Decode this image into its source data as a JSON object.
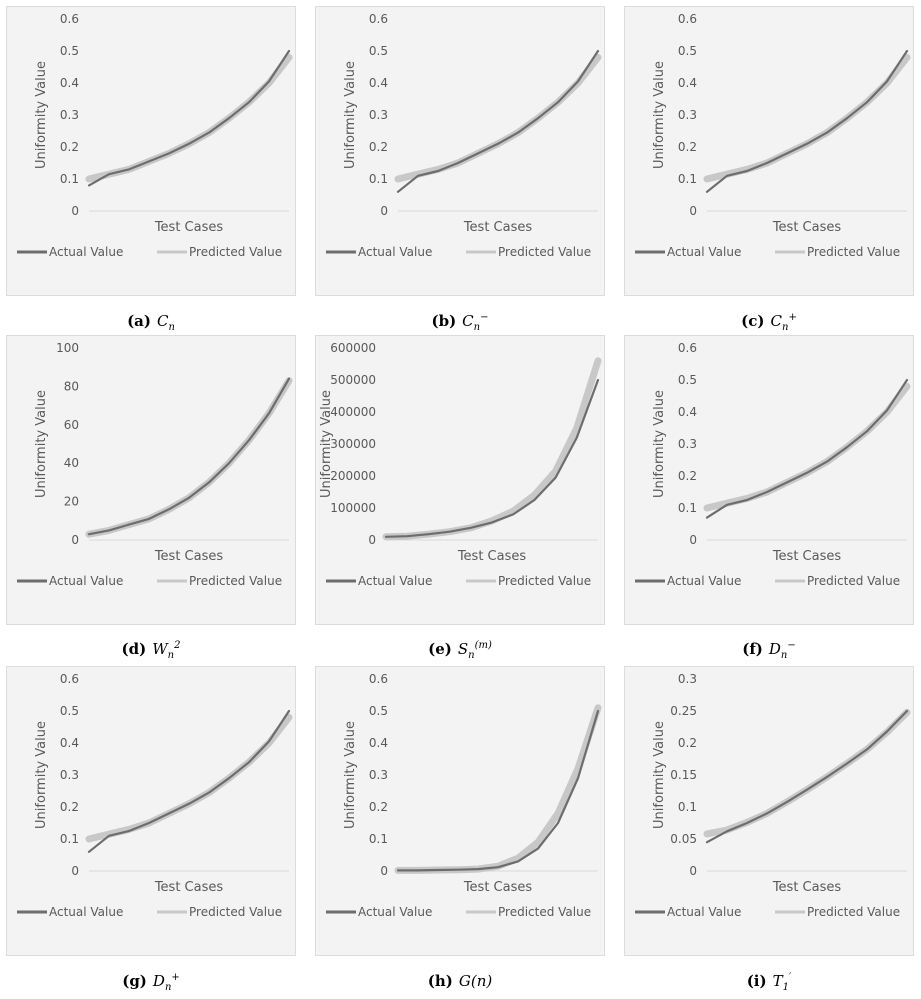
{
  "common": {
    "ylabel": "Uniformity Value",
    "xlabel": "Test Cases",
    "legend": [
      "Actual Value",
      "Predicted Value"
    ],
    "colors": {
      "actual": "#6d6d6d",
      "predicted": "#c8c8c8",
      "tick": "#595959",
      "axis": "#d9d9d9"
    }
  },
  "chart_data": [
    {
      "id": "a",
      "type": "line",
      "caption_tag": "(a)",
      "caption_math": "C_n",
      "yticks": [
        "0.6",
        "0.5",
        "0.4",
        "0.3",
        "0.2",
        "0.1",
        "0"
      ],
      "ylim": [
        0,
        0.6
      ],
      "xlabel": "Test Cases",
      "ylabel": "Uniformity Value",
      "series": [
        {
          "name": "Actual Value",
          "x": [
            0,
            0.1,
            0.2,
            0.3,
            0.4,
            0.5,
            0.6,
            0.7,
            0.8,
            0.9,
            1.0
          ],
          "y": [
            0.08,
            0.115,
            0.13,
            0.155,
            0.18,
            0.21,
            0.245,
            0.29,
            0.34,
            0.405,
            0.5
          ]
        },
        {
          "name": "Predicted Value",
          "x": [
            0,
            0.1,
            0.2,
            0.3,
            0.4,
            0.5,
            0.6,
            0.7,
            0.8,
            0.9,
            1.0
          ],
          "y": [
            0.1,
            0.115,
            0.13,
            0.155,
            0.18,
            0.21,
            0.245,
            0.29,
            0.34,
            0.4,
            0.48
          ]
        }
      ]
    },
    {
      "id": "b",
      "type": "line",
      "caption_tag": "(b)",
      "caption_math": "C_n^-",
      "yticks": [
        "0.6",
        "0.5",
        "0.4",
        "0.3",
        "0.2",
        "0.1",
        "0"
      ],
      "ylim": [
        0,
        0.6
      ],
      "xlabel": "Test Cases",
      "ylabel": "Uniformity Value",
      "series": [
        {
          "name": "Actual Value",
          "x": [
            0,
            0.1,
            0.2,
            0.3,
            0.4,
            0.5,
            0.6,
            0.7,
            0.8,
            0.9,
            1.0
          ],
          "y": [
            0.06,
            0.11,
            0.125,
            0.15,
            0.18,
            0.21,
            0.245,
            0.29,
            0.34,
            0.405,
            0.5
          ]
        },
        {
          "name": "Predicted Value",
          "x": [
            0,
            0.1,
            0.2,
            0.3,
            0.4,
            0.5,
            0.6,
            0.7,
            0.8,
            0.9,
            1.0
          ],
          "y": [
            0.1,
            0.115,
            0.13,
            0.15,
            0.18,
            0.21,
            0.245,
            0.29,
            0.34,
            0.4,
            0.48
          ]
        }
      ]
    },
    {
      "id": "c",
      "type": "line",
      "caption_tag": "(c)",
      "caption_math": "C_n^+",
      "yticks": [
        "0.6",
        "0.5",
        "0.4",
        "0.3",
        "0.2",
        "0.1",
        "0"
      ],
      "ylim": [
        0,
        0.6
      ],
      "xlabel": "Test Cases",
      "ylabel": "Uniformity Value",
      "series": [
        {
          "name": "Actual Value",
          "x": [
            0,
            0.1,
            0.2,
            0.3,
            0.4,
            0.5,
            0.6,
            0.7,
            0.8,
            0.9,
            1.0
          ],
          "y": [
            0.06,
            0.11,
            0.125,
            0.15,
            0.18,
            0.21,
            0.245,
            0.29,
            0.34,
            0.405,
            0.5
          ]
        },
        {
          "name": "Predicted Value",
          "x": [
            0,
            0.1,
            0.2,
            0.3,
            0.4,
            0.5,
            0.6,
            0.7,
            0.8,
            0.9,
            1.0
          ],
          "y": [
            0.1,
            0.115,
            0.13,
            0.15,
            0.18,
            0.21,
            0.245,
            0.29,
            0.34,
            0.4,
            0.48
          ]
        }
      ]
    },
    {
      "id": "d",
      "type": "line",
      "caption_tag": "(d)",
      "caption_math": "W_n^2",
      "yticks": [
        "100",
        "80",
        "60",
        "40",
        "20",
        "0"
      ],
      "ylim": [
        0,
        100
      ],
      "xlabel": "Test Cases",
      "ylabel": "Uniformity Value",
      "series": [
        {
          "name": "Actual Value",
          "x": [
            0,
            0.1,
            0.2,
            0.3,
            0.4,
            0.5,
            0.6,
            0.7,
            0.8,
            0.9,
            1.0
          ],
          "y": [
            3,
            5,
            8,
            11,
            16,
            22,
            30,
            40,
            52,
            66,
            84
          ]
        },
        {
          "name": "Predicted Value",
          "x": [
            0,
            0.1,
            0.2,
            0.3,
            0.4,
            0.5,
            0.6,
            0.7,
            0.8,
            0.9,
            1.0
          ],
          "y": [
            3,
            5,
            8,
            11,
            16,
            22,
            30,
            40,
            52,
            66,
            83
          ]
        }
      ]
    },
    {
      "id": "e",
      "type": "line",
      "caption_tag": "(e)",
      "caption_math": "S_n^(m)",
      "yticks": [
        "600000",
        "500000",
        "400000",
        "300000",
        "200000",
        "100000",
        "0"
      ],
      "ylim": [
        0,
        600000
      ],
      "xlabel": "Test Cases",
      "ylabel": "Uniformity Value",
      "series": [
        {
          "name": "Actual Value",
          "x": [
            0,
            0.1,
            0.2,
            0.3,
            0.4,
            0.5,
            0.6,
            0.7,
            0.8,
            0.9,
            1.0
          ],
          "y": [
            10000,
            12000,
            18000,
            26000,
            38000,
            55000,
            80000,
            125000,
            195000,
            320000,
            500000
          ]
        },
        {
          "name": "Predicted Value",
          "x": [
            0,
            0.1,
            0.2,
            0.3,
            0.4,
            0.5,
            0.6,
            0.7,
            0.8,
            0.9,
            1.0
          ],
          "y": [
            10000,
            12000,
            18000,
            26000,
            38000,
            60000,
            90000,
            140000,
            215000,
            350000,
            560000
          ]
        }
      ]
    },
    {
      "id": "f",
      "type": "line",
      "caption_tag": "(f)",
      "caption_math": "D_n^-",
      "yticks": [
        "0.6",
        "0.5",
        "0.4",
        "0.3",
        "0.2",
        "0.1",
        "0"
      ],
      "ylim": [
        0,
        0.6
      ],
      "xlabel": "Test Cases",
      "ylabel": "Uniformity Value",
      "series": [
        {
          "name": "Actual Value",
          "x": [
            0,
            0.1,
            0.2,
            0.3,
            0.4,
            0.5,
            0.6,
            0.7,
            0.8,
            0.9,
            1.0
          ],
          "y": [
            0.07,
            0.11,
            0.125,
            0.15,
            0.18,
            0.21,
            0.245,
            0.29,
            0.34,
            0.405,
            0.5
          ]
        },
        {
          "name": "Predicted Value",
          "x": [
            0,
            0.1,
            0.2,
            0.3,
            0.4,
            0.5,
            0.6,
            0.7,
            0.8,
            0.9,
            1.0
          ],
          "y": [
            0.1,
            0.115,
            0.13,
            0.15,
            0.18,
            0.21,
            0.245,
            0.29,
            0.34,
            0.4,
            0.48
          ]
        }
      ]
    },
    {
      "id": "g",
      "type": "line",
      "caption_tag": "(g)",
      "caption_math": "D_n^+",
      "yticks": [
        "0.6",
        "0.5",
        "0.4",
        "0.3",
        "0.2",
        "0.1",
        "0"
      ],
      "ylim": [
        0,
        0.6
      ],
      "xlabel": "Test Cases",
      "ylabel": "Uniformity Value",
      "series": [
        {
          "name": "Actual Value",
          "x": [
            0,
            0.1,
            0.2,
            0.3,
            0.4,
            0.5,
            0.6,
            0.7,
            0.8,
            0.9,
            1.0
          ],
          "y": [
            0.06,
            0.11,
            0.125,
            0.15,
            0.18,
            0.21,
            0.245,
            0.29,
            0.34,
            0.405,
            0.5
          ]
        },
        {
          "name": "Predicted Value",
          "x": [
            0,
            0.1,
            0.2,
            0.3,
            0.4,
            0.5,
            0.6,
            0.7,
            0.8,
            0.9,
            1.0
          ],
          "y": [
            0.1,
            0.115,
            0.13,
            0.15,
            0.18,
            0.21,
            0.245,
            0.29,
            0.34,
            0.4,
            0.48
          ]
        }
      ]
    },
    {
      "id": "h",
      "type": "line",
      "caption_tag": "(h)",
      "caption_math": "G(n)",
      "yticks": [
        "0.6",
        "0.5",
        "0.4",
        "0.3",
        "0.2",
        "0.1",
        "0"
      ],
      "ylim": [
        0,
        0.6
      ],
      "xlabel": "Test Cases",
      "ylabel": "Uniformity Value",
      "series": [
        {
          "name": "Actual Value",
          "x": [
            0,
            0.1,
            0.2,
            0.3,
            0.4,
            0.5,
            0.6,
            0.7,
            0.8,
            0.9,
            1.0
          ],
          "y": [
            0.002,
            0.002,
            0.003,
            0.004,
            0.006,
            0.012,
            0.03,
            0.07,
            0.15,
            0.29,
            0.5
          ]
        },
        {
          "name": "Predicted Value",
          "x": [
            0,
            0.1,
            0.2,
            0.3,
            0.4,
            0.5,
            0.6,
            0.7,
            0.8,
            0.9,
            1.0
          ],
          "y": [
            0.002,
            0.002,
            0.003,
            0.004,
            0.006,
            0.015,
            0.04,
            0.09,
            0.18,
            0.32,
            0.51
          ]
        }
      ]
    },
    {
      "id": "i",
      "type": "line",
      "caption_tag": "(i)",
      "caption_math": "T_1'",
      "yticks": [
        "0.3",
        "0.25",
        "0.2",
        "0.15",
        "0.1",
        "0.05",
        "0"
      ],
      "ylim": [
        0,
        0.3
      ],
      "xlabel": "Test Cases",
      "ylabel": "Uniformity Value",
      "series": [
        {
          "name": "Actual Value",
          "x": [
            0,
            0.1,
            0.2,
            0.3,
            0.4,
            0.5,
            0.6,
            0.7,
            0.8,
            0.9,
            1.0
          ],
          "y": [
            0.045,
            0.062,
            0.075,
            0.09,
            0.108,
            0.127,
            0.147,
            0.168,
            0.19,
            0.218,
            0.25
          ]
        },
        {
          "name": "Predicted Value",
          "x": [
            0,
            0.1,
            0.2,
            0.3,
            0.4,
            0.5,
            0.6,
            0.7,
            0.8,
            0.9,
            1.0
          ],
          "y": [
            0.058,
            0.064,
            0.076,
            0.09,
            0.108,
            0.127,
            0.147,
            0.168,
            0.19,
            0.217,
            0.248
          ]
        }
      ]
    }
  ]
}
